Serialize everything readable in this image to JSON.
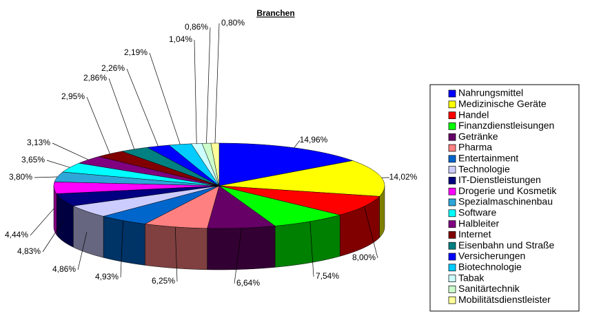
{
  "chart_data": {
    "type": "pie",
    "title": "Branchen",
    "categories": [
      "Nahrungsmittel",
      "Medizinische Geräte",
      "Handel",
      "Finanzdienstleisungen",
      "Getränke",
      "Pharma",
      "Entertainment",
      "Technologie",
      "IT-Dienstleistungen",
      "Drogerie und Kosmetik",
      "Spezialmaschinenbau",
      "Software",
      "Halbleiter",
      "Internet",
      "Eisenbahn und Straße",
      "Versicherungen",
      "Biotechnologie",
      "Tabak",
      "Sanitärtechnik",
      "Mobilitätsdienstleister"
    ],
    "values": [
      14.96,
      14.02,
      8.0,
      7.54,
      6.64,
      6.25,
      4.93,
      4.86,
      4.83,
      4.44,
      3.8,
      3.65,
      3.13,
      2.95,
      2.86,
      2.26,
      2.19,
      1.04,
      0.86,
      0.8
    ],
    "value_labels": [
      "14,96%",
      "14,02%",
      "8,00%",
      "7,54%",
      "6,64%",
      "6,25%",
      "4,93%",
      "4,86%",
      "4,83%",
      "4,44%",
      "3,80%",
      "3,65%",
      "3,13%",
      "2,95%",
      "2,86%",
      "2,26%",
      "2,19%",
      "1,04%",
      "0,86%",
      "0,80%"
    ],
    "colors": [
      "#0000ff",
      "#ffff00",
      "#ff0000",
      "#00ff00",
      "#660066",
      "#ff8080",
      "#0066cc",
      "#ccccff",
      "#000080",
      "#ff00ff",
      "#2ea6d8",
      "#00ffff",
      "#800080",
      "#800000",
      "#008080",
      "#0000ff",
      "#00ccff",
      "#ccffff",
      "#ccffcc",
      "#ffff99"
    ],
    "legend": "right"
  }
}
